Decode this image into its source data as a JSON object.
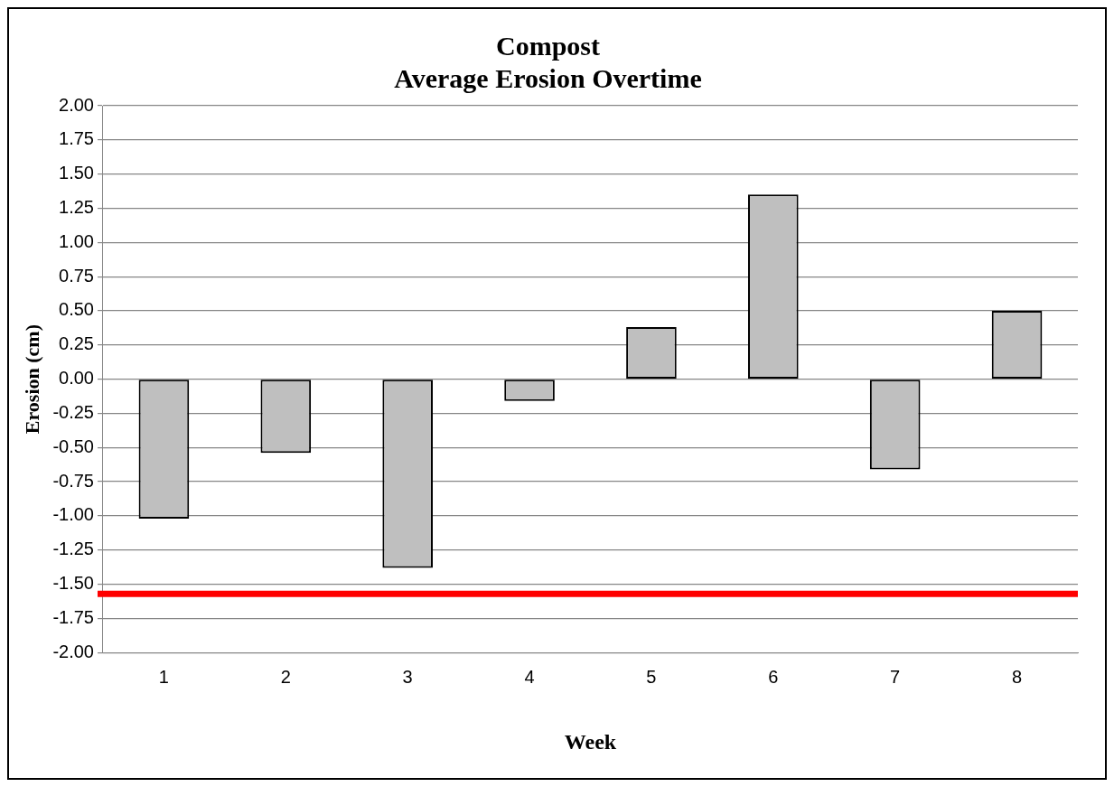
{
  "chart_data": {
    "type": "bar",
    "title": [
      "Compost",
      "Average Erosion Overtime"
    ],
    "xlabel": "Week",
    "ylabel": "Erosion (cm)",
    "categories": [
      "1",
      "2",
      "3",
      "4",
      "5",
      "6",
      "7",
      "8"
    ],
    "values": [
      -1.02,
      -0.54,
      -1.38,
      -0.16,
      0.38,
      1.35,
      -0.66,
      0.5
    ],
    "color": "#bfbfbf",
    "ylim": [
      -2,
      2
    ],
    "yticks": [
      {
        "value": -2,
        "label": "-2.00"
      },
      {
        "value": -1.75,
        "label": "-1.75"
      },
      {
        "value": -1.5,
        "label": "-1.50"
      },
      {
        "value": -1.25,
        "label": "-1.25"
      },
      {
        "value": -1,
        "label": "-1.00"
      },
      {
        "value": -0.75,
        "label": "-0.75"
      },
      {
        "value": -0.5,
        "label": "-0.50"
      },
      {
        "value": -0.25,
        "label": "-0.25"
      },
      {
        "value": 0,
        "label": "0.00"
      },
      {
        "value": 0.25,
        "label": "0.25"
      },
      {
        "value": 0.5,
        "label": "0.50"
      },
      {
        "value": 0.75,
        "label": "0.75"
      },
      {
        "value": 1,
        "label": "1.00"
      },
      {
        "value": 1.25,
        "label": "1.25"
      },
      {
        "value": 1.5,
        "label": "1.50"
      },
      {
        "value": 1.75,
        "label": "1.75"
      },
      {
        "value": 2,
        "label": "2.00"
      }
    ],
    "ref_lines": [
      {
        "axis": "y",
        "value": -1.57,
        "color": "#ff0000"
      }
    ],
    "grid": "y",
    "legend": false
  }
}
